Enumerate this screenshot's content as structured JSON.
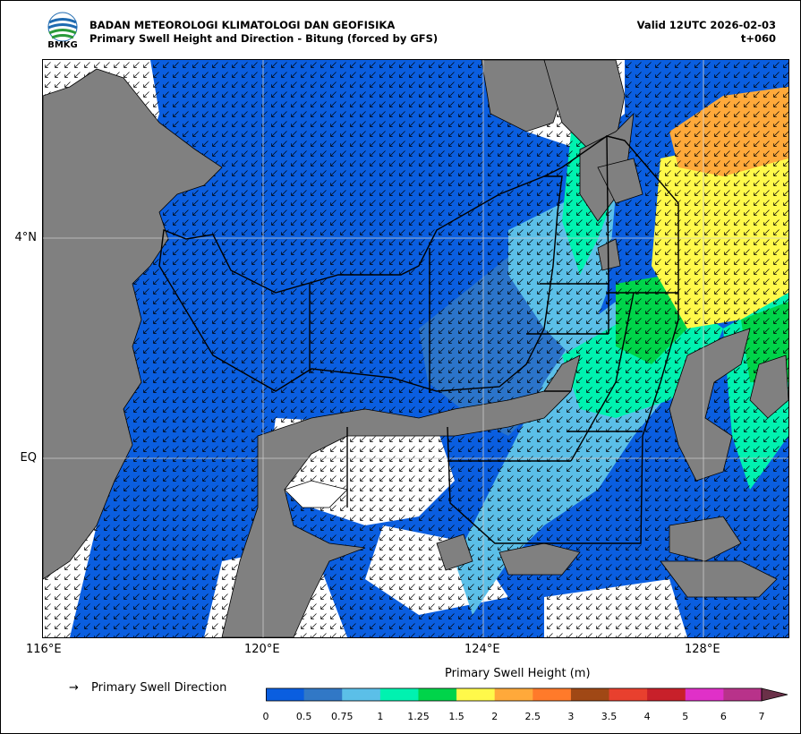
{
  "header": {
    "logo_text": "BMKG",
    "title_line1": "BADAN METEOROLOGI KLIMATOLOGI DAN GEOFISIKA",
    "title_line2": "Primary Swell Height and Direction - Bitung (forced by GFS)",
    "valid": "Valid 12UTC 2026-02-03",
    "step": "t+060"
  },
  "map": {
    "lon_labels": [
      "116°E",
      "120°E",
      "124°E",
      "128°E"
    ],
    "lat_labels": [
      "4°N",
      "EQ"
    ],
    "extent": {
      "lon": [
        116,
        129.6
      ],
      "lat": [
        -3.2,
        7.3
      ]
    },
    "colors": {
      "land": "#808080",
      "nodata": "#ffffff",
      "grid": "#cccccc",
      "boundary": "#000000",
      "arrow": "#000000"
    }
  },
  "legend": {
    "arrow_symbol": "→",
    "direction_label": "Primary Swell Direction",
    "colorbar_title": "Primary Swell Height (m)",
    "tick_labels": [
      "0",
      "0.5",
      "0.75",
      "1",
      "1.25",
      "1.5",
      "2",
      "2.5",
      "3",
      "3.5",
      "4",
      "5",
      "6",
      "7"
    ],
    "colors": [
      "#0a5ee0",
      "#3178c6",
      "#5bbfe8",
      "#00f2b0",
      "#00d44a",
      "#fff94a",
      "#ffa93a",
      "#ff7a2a",
      "#a04815",
      "#e8402e",
      "#c8202a",
      "#e030c8",
      "#b8328a",
      "#6a3048"
    ]
  }
}
